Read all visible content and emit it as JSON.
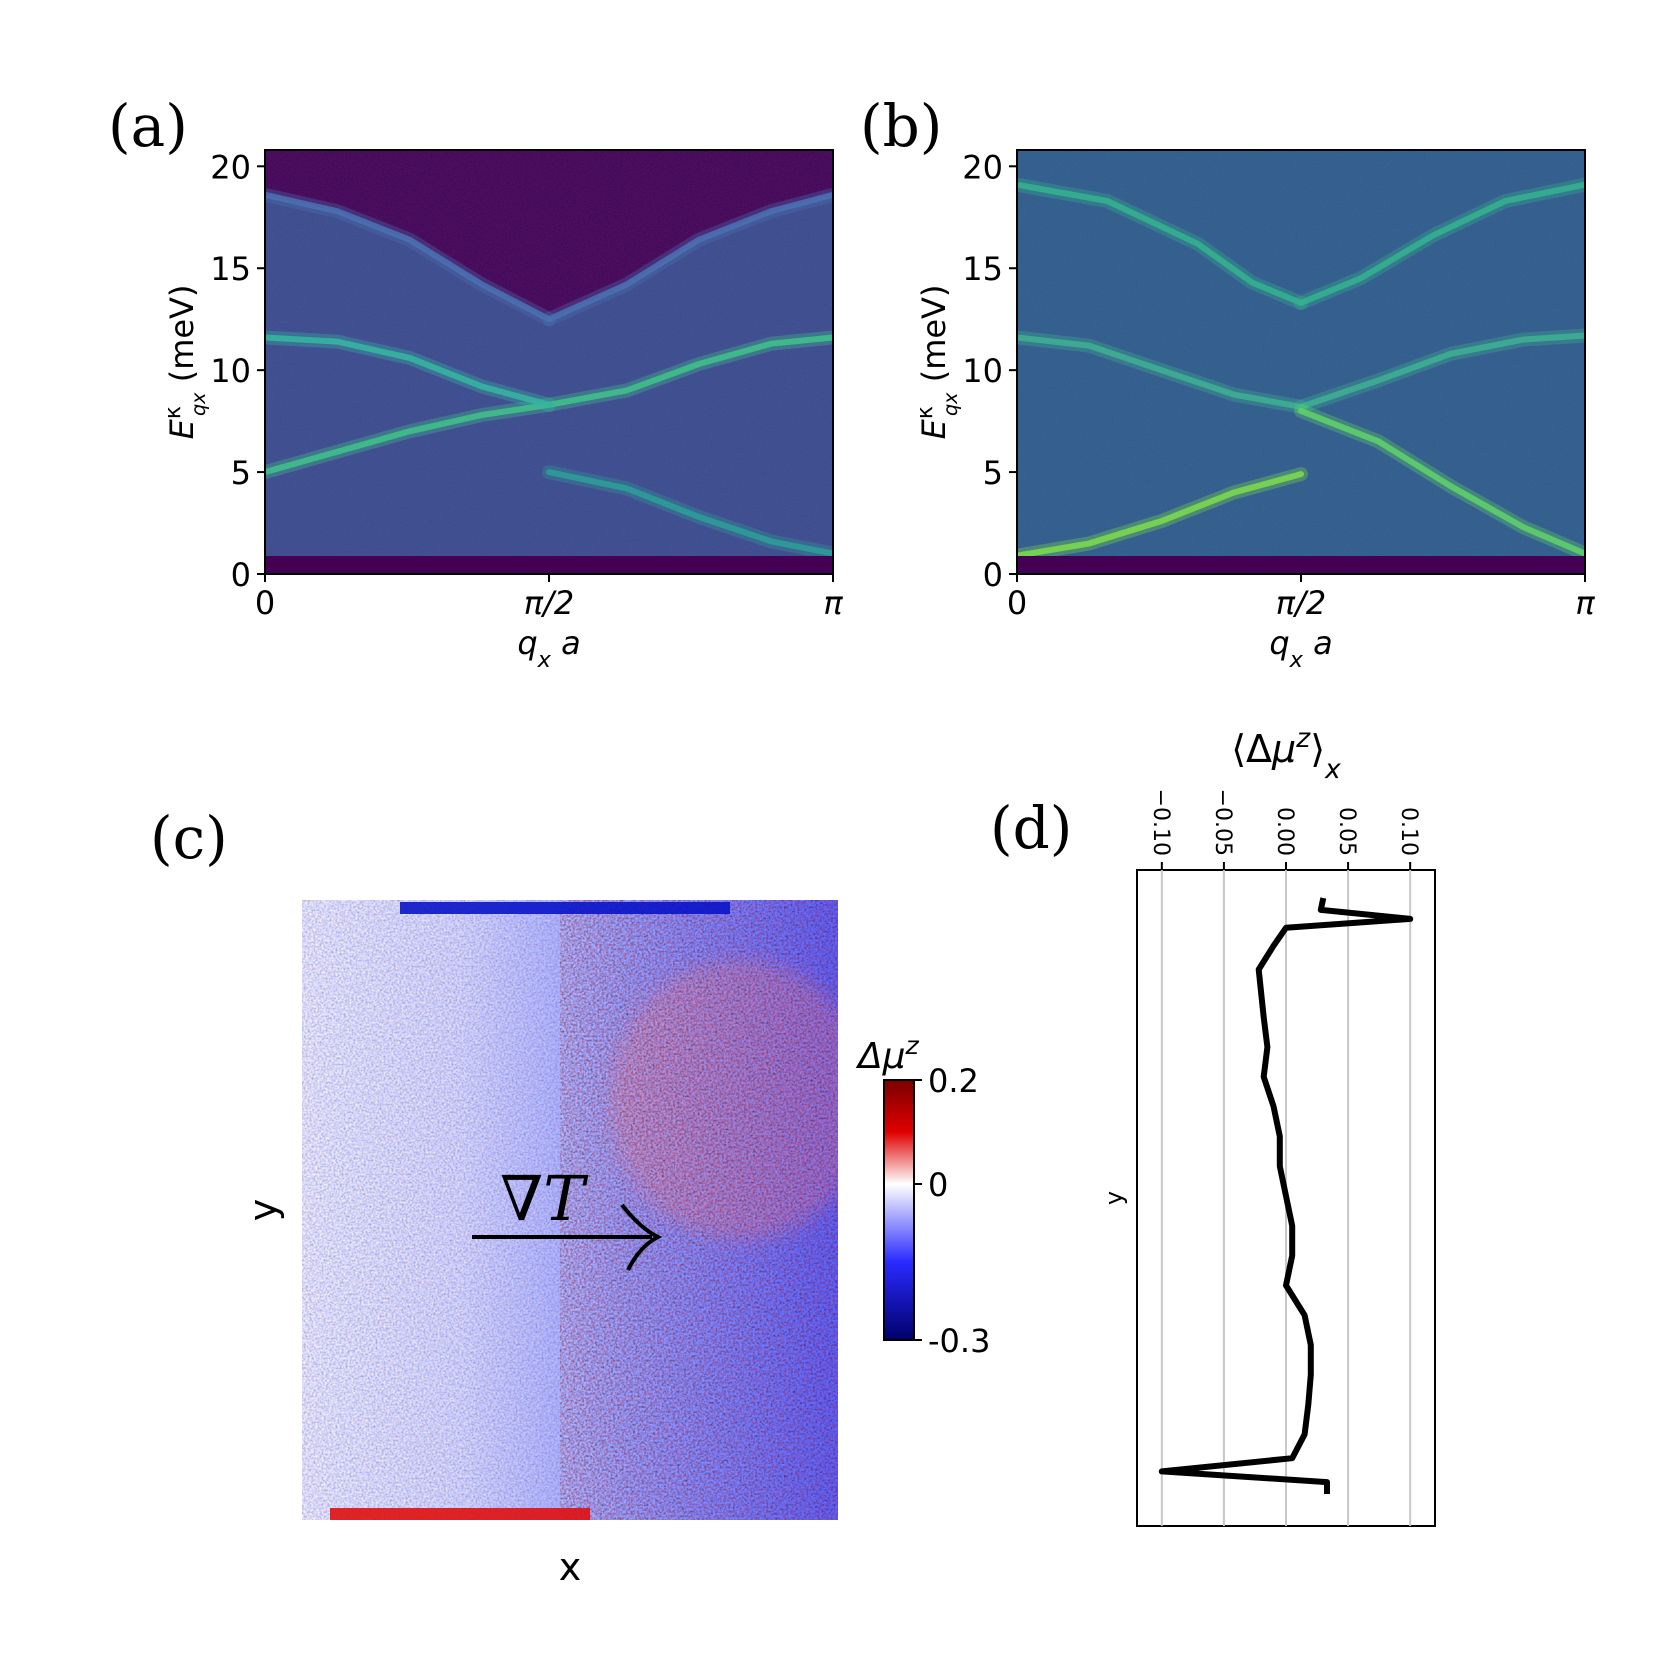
{
  "panels": {
    "a": {
      "label": "(a)"
    },
    "b": {
      "label": "(b)"
    },
    "c": {
      "label": "(c)"
    },
    "d": {
      "label": "(d)"
    }
  },
  "chart_data": [
    {
      "id": "a",
      "type": "heatmap",
      "xlabel": "q_x a",
      "ylabel": "E^κ_{q_x} (meV)",
      "xticks": [
        "0",
        "π/2",
        "π"
      ],
      "yticks": [
        "0",
        "5",
        "10",
        "15",
        "20"
      ],
      "xlim": [
        0,
        3.1416
      ],
      "ylim": [
        0,
        20.8
      ],
      "colormap": "viridis",
      "bands": [
        {
          "x": [
            0,
            0.4,
            0.8,
            1.2,
            1.5708,
            2.0,
            2.4,
            2.8,
            3.1416
          ],
          "y": [
            5.0,
            6.0,
            7.0,
            7.8,
            8.3,
            9.0,
            10.3,
            11.3,
            11.6
          ]
        },
        {
          "x": [
            0,
            0.4,
            0.8,
            1.2,
            1.5708
          ],
          "y": [
            11.6,
            11.4,
            10.6,
            9.2,
            8.3
          ]
        },
        {
          "x": [
            1.5708,
            2.0,
            2.4,
            2.8,
            3.1416
          ],
          "y": [
            5.0,
            4.2,
            2.8,
            1.6,
            1.0
          ]
        },
        {
          "x": [
            0,
            0.4,
            0.8,
            1.2,
            1.5708
          ],
          "y": [
            18.6,
            17.8,
            16.4,
            14.2,
            12.5
          ]
        },
        {
          "x": [
            1.5708,
            2.0,
            2.4,
            2.8,
            3.1416
          ],
          "y": [
            12.5,
            14.2,
            16.4,
            17.8,
            18.6
          ]
        }
      ]
    },
    {
      "id": "b",
      "type": "heatmap",
      "xlabel": "q_x a",
      "ylabel": "E^κ_{q_x} (meV)",
      "xticks": [
        "0",
        "π/2",
        "π"
      ],
      "yticks": [
        "0",
        "5",
        "10",
        "15",
        "20"
      ],
      "xlim": [
        0,
        3.1416
      ],
      "ylim": [
        0,
        20.8
      ],
      "colormap": "viridis",
      "bands": [
        {
          "x": [
            0,
            0.5,
            1.0,
            1.3,
            1.5708
          ],
          "y": [
            19.1,
            18.3,
            16.2,
            14.3,
            13.3
          ]
        },
        {
          "x": [
            1.5708,
            1.9,
            2.3,
            2.7,
            3.1416
          ],
          "y": [
            13.3,
            14.5,
            16.6,
            18.3,
            19.1
          ]
        },
        {
          "x": [
            0,
            0.4,
            0.8,
            1.2,
            1.5708
          ],
          "y": [
            11.6,
            11.2,
            10.0,
            8.8,
            8.2
          ]
        },
        {
          "x": [
            1.5708,
            2.0,
            2.4,
            2.8,
            3.1416
          ],
          "y": [
            8.2,
            9.5,
            10.8,
            11.5,
            11.7
          ]
        },
        {
          "x": [
            0,
            0.4,
            0.8,
            1.2,
            1.5708
          ],
          "y": [
            0.9,
            1.5,
            2.6,
            4.0,
            4.9
          ]
        },
        {
          "x": [
            1.5708,
            2.0,
            2.4,
            2.8,
            3.1416
          ],
          "y": [
            8.0,
            6.5,
            4.3,
            2.3,
            1.0
          ]
        }
      ]
    },
    {
      "id": "c",
      "type": "heatmap",
      "xlabel": "x",
      "ylabel": "y",
      "colorbar": {
        "label": "Δμ^z",
        "ticks": [
          "0.2",
          "0",
          "-0.3"
        ],
        "vmin": -0.3,
        "vmax": 0.2
      },
      "colormap": "seismic",
      "annotation": "∇T"
    },
    {
      "id": "d",
      "type": "line",
      "xlabel": "⟨Δμ^z⟩_x",
      "ylabel": "y",
      "xticks": [
        "−0.10",
        "−0.05",
        "0.00",
        "0.05",
        "0.10"
      ],
      "xlim": [
        -0.12,
        0.12
      ],
      "ylim": [
        0,
        1
      ],
      "grid": true,
      "series": [
        {
          "y": [
            0.0,
            0.02,
            0.035,
            0.05,
            0.08,
            0.12,
            0.16,
            0.2,
            0.25,
            0.3,
            0.35,
            0.4,
            0.45,
            0.5,
            0.55,
            0.6,
            0.65,
            0.7,
            0.75,
            0.8,
            0.85,
            0.9,
            0.94,
            0.962,
            0.98,
            1.0
          ],
          "x": [
            0.03,
            0.028,
            0.1,
            0.0,
            -0.01,
            -0.022,
            -0.02,
            -0.018,
            -0.015,
            -0.018,
            -0.01,
            -0.005,
            -0.005,
            0.0,
            0.005,
            0.005,
            0.0,
            0.015,
            0.02,
            0.02,
            0.018,
            0.015,
            0.005,
            -0.1,
            0.033,
            0.033
          ]
        }
      ]
    }
  ]
}
